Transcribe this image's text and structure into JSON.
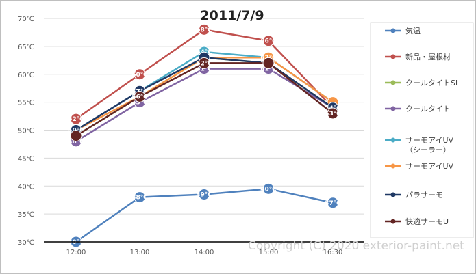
{
  "chart_data": {
    "type": "line",
    "title": "2011/7/9",
    "xlabel": "",
    "ylabel": "",
    "categories": [
      "12:00",
      "13:00",
      "14:00",
      "15:00",
      "16:30"
    ],
    "ylim": [
      30,
      70
    ],
    "yticks": [
      "30℃",
      "35℃",
      "40℃",
      "45℃",
      "50℃",
      "55℃",
      "60℃",
      "65℃",
      "70℃"
    ],
    "grid": true,
    "legend_position": "right",
    "series": [
      {
        "name": "気温",
        "color": "#4f81bd",
        "values": [
          30,
          38,
          38.5,
          39.5,
          37
        ],
        "labels": [
          "30℃",
          "38℃",
          "39℃",
          "40℃",
          "37℃"
        ]
      },
      {
        "name": "新品・屋根材",
        "color": "#c0504d",
        "values": [
          52,
          60,
          68,
          66,
          54
        ],
        "labels": [
          "52℃",
          "60℃",
          "68℃",
          "66℃",
          ""
        ]
      },
      {
        "name": "クールタイトSi",
        "color": "#9bbb59",
        "values": [
          49,
          56,
          63,
          62,
          54
        ],
        "labels": [
          "49℃",
          "",
          "63℃",
          "",
          ""
        ]
      },
      {
        "name": "クールタイト",
        "color": "#8064a2",
        "values": [
          48,
          55,
          61,
          61,
          54
        ],
        "labels": [
          "48℃",
          "55℃",
          "61℃",
          "61℃",
          ""
        ]
      },
      {
        "name": "サーモアイUV\n（シーラー）",
        "color": "#4bacc6",
        "values": [
          50,
          57,
          64,
          63,
          55
        ],
        "labels": [
          "",
          "",
          "64℃",
          "",
          "55℃"
        ]
      },
      {
        "name": "サーモアイUV",
        "color": "#f79646",
        "values": [
          50,
          56,
          63,
          63,
          55
        ],
        "labels": [
          "",
          "",
          "",
          "63℃",
          ""
        ]
      },
      {
        "name": "パラサーモ",
        "color": "#1f3864",
        "values": [
          50,
          57,
          63,
          62,
          54
        ],
        "labels": [
          "50℃",
          "57℃",
          "",
          "62℃",
          "54℃"
        ]
      },
      {
        "name": "快適サーモU",
        "color": "#632523",
        "values": [
          49,
          56,
          62,
          62,
          53
        ],
        "labels": [
          "",
          "56℃",
          "62℃",
          "",
          "53℃"
        ]
      }
    ]
  },
  "watermark": "Copyright (C) 2020 exterior-paint.net"
}
